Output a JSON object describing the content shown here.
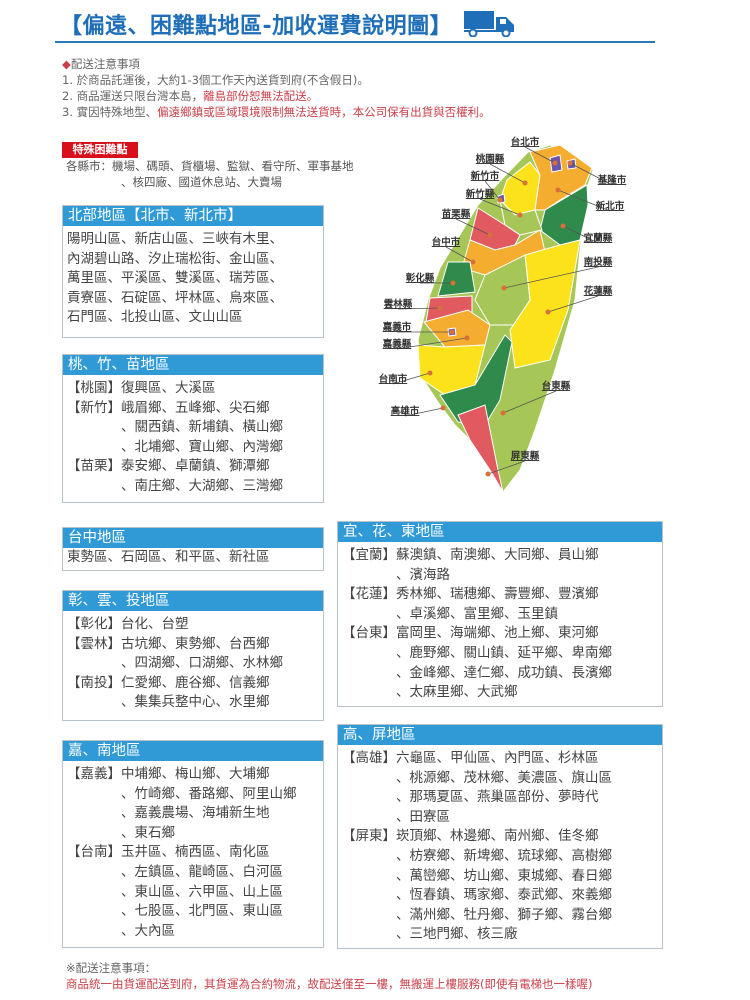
{
  "title": "【偏遠、困難點地區-加收運費說明圖】",
  "truck_icon": "truck-icon",
  "notes": {
    "heading": "配送注意事項",
    "lines": [
      {
        "gray": "1. 於商品託運後，大約1-3個工作天內送貨到府(不含假日)。",
        "red": ""
      },
      {
        "gray": "2. 商品運送只限台灣本島，",
        "red": "離島部份恕無法配送。"
      },
      {
        "gray": "3. 實因特殊地型、",
        "red": "偏遠鄉鎮或區域環境限制無法送貨時，本公司保有出貨與否權利。"
      }
    ]
  },
  "special": {
    "badge": "特殊困難點",
    "line1": "各縣市：機場、碼頭、貨櫃場、監獄、看守所、軍事基地",
    "line2": "、核四廠、國道休息站、大賣場"
  },
  "panels": [
    {
      "id": "north",
      "title": "北部地區【北市、新北市】",
      "entries": [
        {
          "tag": "",
          "lines": [
            "陽明山區、新店山區、三峽有木里、",
            "內湖碧山路、汐止瑞松街、金山區、",
            "萬里區、平溪區、雙溪區、瑞芳區、",
            "貢寮區、石碇區、坪林區、烏來區、",
            "石門區、北投山區、文山山區"
          ]
        }
      ]
    },
    {
      "id": "taozhumiao",
      "title": "桃、竹、苗地區",
      "entries": [
        {
          "tag": "【桃園】",
          "lines": [
            "復興區、大溪區"
          ]
        },
        {
          "tag": "【新竹】",
          "lines": [
            "峨眉鄉、五峰鄉、尖石鄉",
            "、關西鎮、新埔鎮、橫山鄉",
            "、北埔鄉、寶山鄉、內灣鄉"
          ]
        },
        {
          "tag": "【苗栗】",
          "lines": [
            "泰安鄉、卓蘭鎮、獅潭鄉",
            "、南庄鄉、大湖鄉、三灣鄉"
          ]
        }
      ]
    },
    {
      "id": "taichung",
      "title": "台中地區",
      "entries": [
        {
          "tag": "",
          "lines": [
            "東勢區、石岡區、和平區、新社區"
          ]
        }
      ]
    },
    {
      "id": "zhangyuntou",
      "title": "彰、雲、投地區",
      "entries": [
        {
          "tag": "【彰化】",
          "lines": [
            "台化、台塑"
          ]
        },
        {
          "tag": "【雲林】",
          "lines": [
            "古坑鄉、東勢鄉、台西鄉",
            "、四湖鄉、口湖鄉、水林鄉"
          ]
        },
        {
          "tag": "【南投】",
          "lines": [
            "仁愛鄉、鹿谷鄉、信義鄉",
            "、集集兵整中心、水里鄉"
          ]
        }
      ]
    },
    {
      "id": "jianan",
      "title": "嘉、南地區",
      "entries": [
        {
          "tag": "【嘉義】",
          "lines": [
            "中埔鄉、梅山鄉、大埔鄉",
            "、竹崎鄉、番路鄉、阿里山鄉",
            "、嘉義農場、海埔新生地",
            "、東石鄉"
          ]
        },
        {
          "tag": "【台南】",
          "lines": [
            "玉井區、楠西區、南化區",
            "、左鎮區、龍崎區、白河區",
            "、東山區、六甲區、山上區",
            "、七股區、北門區、東山區",
            "、大內區"
          ]
        }
      ]
    },
    {
      "id": "yihuadong",
      "title": "宜、花、東地區",
      "entries": [
        {
          "tag": "【宜蘭】",
          "lines": [
            "蘇澳鎮、南澳鄉、大同鄉、員山鄉",
            "、濱海路"
          ]
        },
        {
          "tag": "【花蓮】",
          "lines": [
            "秀林鄉、瑞穗鄉、壽豐鄉、豐濱鄉",
            "、卓溪鄉、富里鄉、玉里鎮"
          ]
        },
        {
          "tag": "【台東】",
          "lines": [
            "富岡里、海端鄉、池上鄉、東河鄉",
            "、鹿野鄉、關山鎮、延平鄉、卑南鄉",
            "、金峰鄉、達仁鄉、成功鎮、長濱鄉",
            "、太麻里鄉、大武鄉"
          ]
        }
      ]
    },
    {
      "id": "gaoping",
      "title": "高、屏地區",
      "entries": [
        {
          "tag": "【高雄】",
          "lines": [
            "六龜區、甲仙區、內門區、杉林區",
            "、桃源鄉、茂林鄉、美濃區、旗山區",
            "、那瑪夏區、燕巢區部份、夢時代",
            "、田寮區"
          ]
        },
        {
          "tag": "【屏東】",
          "lines": [
            "崁頂鄉、林邊鄉、南州鄉、佳冬鄉",
            "、枋寮鄉、新埤鄉、琉球鄉、高樹鄉",
            "、萬巒鄉、坊山鄉、東城鄉、春日鄉",
            "、恆春鎮、瑪家鄉、泰武鄉、來義鄉",
            "、滿州鄉、牡丹鄉、獅子鄉、霧台鄉",
            "、三地門鄉、核三廠"
          ]
        }
      ]
    }
  ],
  "map": {
    "colors": {
      "yellow": "#fbe21a",
      "orange": "#f4ad2f",
      "red": "#e05a5f",
      "dark_green": "#2e8b4b",
      "light_green": "#a6c657",
      "purple": "#6b55a8"
    },
    "labels": [
      "台北市",
      "桃園縣",
      "新竹市",
      "新竹縣",
      "苗栗縣",
      "台中市",
      "彰化縣",
      "雲林縣",
      "嘉義市",
      "嘉義縣",
      "台南市",
      "高雄市",
      "屏東縣",
      "台東縣",
      "花蓮縣",
      "南投縣",
      "宜蘭縣",
      "新北市",
      "基隆市"
    ]
  },
  "footer": {
    "heading": "※配送注意事項：",
    "text": "商品統一由貨運配送到府，其貨運為合約物流，故配送僅至一樓，無搬運上樓服務(即使有電梯也一樣喔)"
  }
}
